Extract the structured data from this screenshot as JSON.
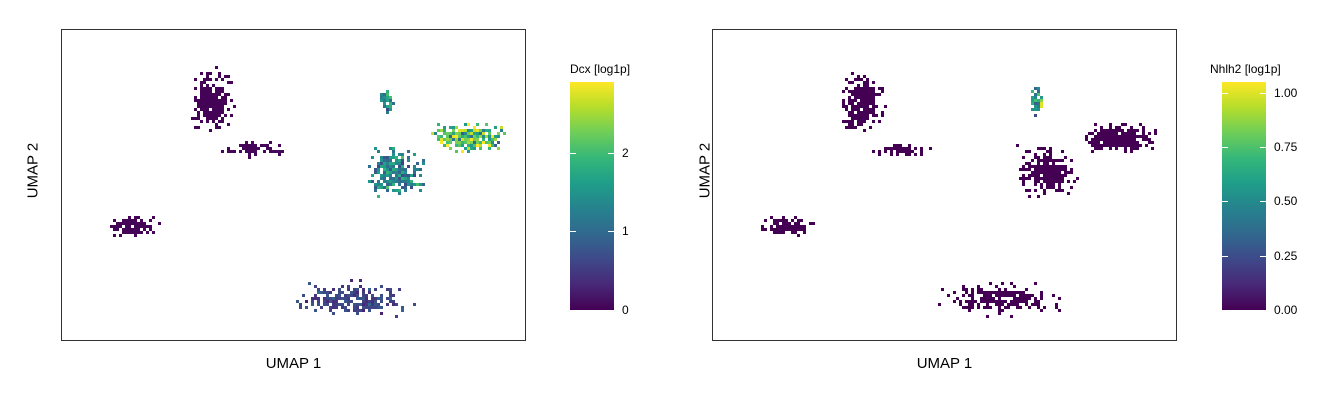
{
  "chart_data": [
    {
      "type": "scatter",
      "title": "",
      "xlabel": "UMAP 1",
      "ylabel": "UMAP 2",
      "colorbar_title": "Dcx [log1p]",
      "colorbar_range": [
        0,
        2.9
      ],
      "colorbar_ticks": [
        {
          "value": 0,
          "label": "0"
        },
        {
          "value": 1,
          "label": "1"
        },
        {
          "value": 2,
          "label": "2"
        }
      ],
      "colormap": [
        "#440154",
        "#482878",
        "#3e4989",
        "#31688e",
        "#26828e",
        "#1f9e89",
        "#35b779",
        "#6ece58",
        "#b5de2b",
        "#fde725"
      ],
      "grid": false,
      "clusters": [
        {
          "name": "top-left",
          "cx": 0.31,
          "cy": 0.8,
          "rx": 0.06,
          "ry": 0.13,
          "n": 260,
          "mean": 0.02
        },
        {
          "name": "top-left-arm",
          "cx": 0.4,
          "cy": 0.63,
          "rx": 0.08,
          "ry": 0.03,
          "n": 60,
          "mean": 0.05
        },
        {
          "name": "center",
          "cx": 0.73,
          "cy": 0.55,
          "rx": 0.08,
          "ry": 0.1,
          "n": 260,
          "mean": 1.3
        },
        {
          "name": "right-arm",
          "cx": 0.9,
          "cy": 0.67,
          "rx": 0.1,
          "ry": 0.06,
          "n": 260,
          "mean": 2.1
        },
        {
          "name": "top-spike",
          "cx": 0.71,
          "cy": 0.8,
          "rx": 0.02,
          "ry": 0.07,
          "n": 40,
          "mean": 1.5
        },
        {
          "name": "left-small",
          "cx": 0.13,
          "cy": 0.36,
          "rx": 0.07,
          "ry": 0.05,
          "n": 110,
          "mean": 0.03
        },
        {
          "name": "bottom",
          "cx": 0.63,
          "cy": 0.1,
          "rx": 0.16,
          "ry": 0.07,
          "n": 220,
          "mean": 0.6
        }
      ]
    },
    {
      "type": "scatter",
      "title": "",
      "xlabel": "UMAP 1",
      "ylabel": "UMAP 2",
      "colorbar_title": "Nhlh2 [log1p]",
      "colorbar_range": [
        0,
        1.05
      ],
      "colorbar_ticks": [
        {
          "value": 0.0,
          "label": "0.00"
        },
        {
          "value": 0.25,
          "label": "0.25"
        },
        {
          "value": 0.5,
          "label": "0.50"
        },
        {
          "value": 0.75,
          "label": "0.75"
        },
        {
          "value": 1.0,
          "label": "1.00"
        }
      ],
      "colormap": [
        "#440154",
        "#482878",
        "#3e4989",
        "#31688e",
        "#26828e",
        "#1f9e89",
        "#35b779",
        "#6ece58",
        "#b5de2b",
        "#fde725"
      ],
      "grid": false,
      "clusters": [
        {
          "name": "top-left",
          "cx": 0.31,
          "cy": 0.8,
          "rx": 0.06,
          "ry": 0.13,
          "n": 260,
          "mean": 0.0
        },
        {
          "name": "top-left-arm",
          "cx": 0.4,
          "cy": 0.63,
          "rx": 0.08,
          "ry": 0.03,
          "n": 60,
          "mean": 0.0
        },
        {
          "name": "center",
          "cx": 0.73,
          "cy": 0.55,
          "rx": 0.08,
          "ry": 0.1,
          "n": 260,
          "mean": 0.0
        },
        {
          "name": "right-arm",
          "cx": 0.9,
          "cy": 0.67,
          "rx": 0.1,
          "ry": 0.06,
          "n": 260,
          "mean": 0.0
        },
        {
          "name": "top-spike",
          "cx": 0.71,
          "cy": 0.8,
          "rx": 0.02,
          "ry": 0.07,
          "n": 40,
          "mean": 0.55
        },
        {
          "name": "left-small",
          "cx": 0.13,
          "cy": 0.36,
          "rx": 0.07,
          "ry": 0.05,
          "n": 110,
          "mean": 0.0
        },
        {
          "name": "bottom",
          "cx": 0.63,
          "cy": 0.1,
          "rx": 0.16,
          "ry": 0.07,
          "n": 220,
          "mean": 0.0
        }
      ]
    }
  ]
}
